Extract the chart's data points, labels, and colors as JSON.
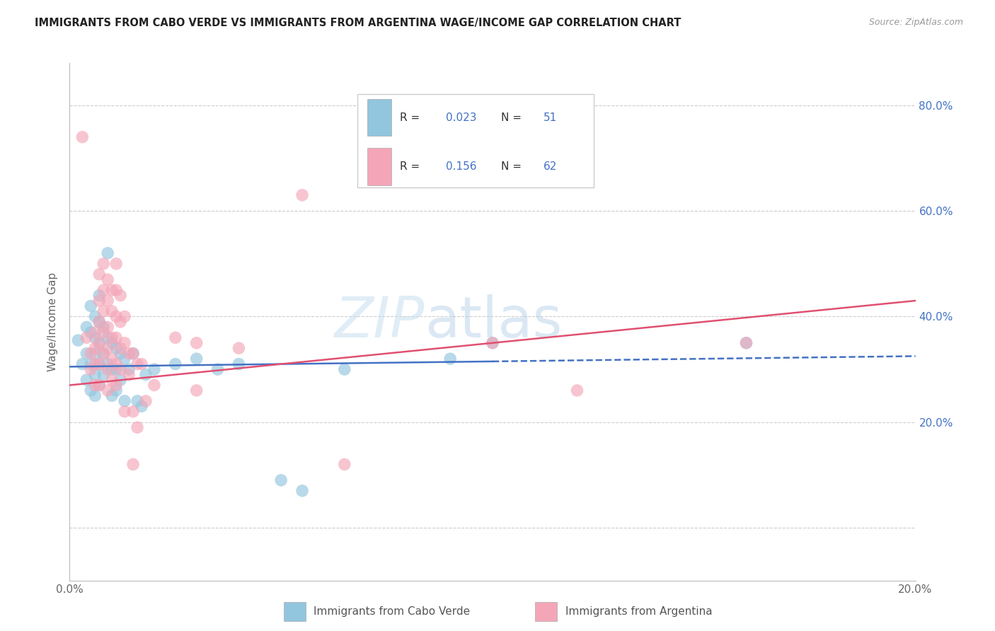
{
  "title": "IMMIGRANTS FROM CABO VERDE VS IMMIGRANTS FROM ARGENTINA WAGE/INCOME GAP CORRELATION CHART",
  "source": "Source: ZipAtlas.com",
  "ylabel": "Wage/Income Gap",
  "y_ticks": [
    0.0,
    0.2,
    0.4,
    0.6,
    0.8
  ],
  "y_tick_labels": [
    "",
    "20.0%",
    "40.0%",
    "60.0%",
    "80.0%"
  ],
  "x_min": 0.0,
  "x_max": 0.2,
  "y_min": -0.1,
  "y_max": 0.88,
  "cabo_verde_R": 0.023,
  "cabo_verde_N": 51,
  "argentina_R": 0.156,
  "argentina_N": 62,
  "color_blue": "#92c5de",
  "color_pink": "#f4a6b8",
  "color_blue_text": "#4472c4",
  "color_pink_text": "#e05070",
  "legend_label_blue": "Immigrants from Cabo Verde",
  "legend_label_pink": "Immigrants from Argentina",
  "watermark_zip": "ZIP",
  "watermark_atlas": "atlas",
  "cabo_verde_points": [
    [
      0.002,
      0.355
    ],
    [
      0.003,
      0.31
    ],
    [
      0.004,
      0.38
    ],
    [
      0.004,
      0.33
    ],
    [
      0.004,
      0.28
    ],
    [
      0.005,
      0.42
    ],
    [
      0.005,
      0.37
    ],
    [
      0.005,
      0.31
    ],
    [
      0.005,
      0.26
    ],
    [
      0.006,
      0.4
    ],
    [
      0.006,
      0.36
    ],
    [
      0.006,
      0.33
    ],
    [
      0.006,
      0.29
    ],
    [
      0.006,
      0.25
    ],
    [
      0.007,
      0.44
    ],
    [
      0.007,
      0.39
    ],
    [
      0.007,
      0.35
    ],
    [
      0.007,
      0.31
    ],
    [
      0.007,
      0.27
    ],
    [
      0.008,
      0.38
    ],
    [
      0.008,
      0.33
    ],
    [
      0.008,
      0.29
    ],
    [
      0.009,
      0.52
    ],
    [
      0.009,
      0.36
    ],
    [
      0.009,
      0.31
    ],
    [
      0.01,
      0.35
    ],
    [
      0.01,
      0.3
    ],
    [
      0.01,
      0.25
    ],
    [
      0.011,
      0.34
    ],
    [
      0.011,
      0.3
    ],
    [
      0.011,
      0.26
    ],
    [
      0.012,
      0.33
    ],
    [
      0.012,
      0.28
    ],
    [
      0.013,
      0.32
    ],
    [
      0.013,
      0.24
    ],
    [
      0.014,
      0.3
    ],
    [
      0.015,
      0.33
    ],
    [
      0.016,
      0.24
    ],
    [
      0.017,
      0.23
    ],
    [
      0.018,
      0.29
    ],
    [
      0.02,
      0.3
    ],
    [
      0.025,
      0.31
    ],
    [
      0.03,
      0.32
    ],
    [
      0.035,
      0.3
    ],
    [
      0.04,
      0.31
    ],
    [
      0.05,
      0.09
    ],
    [
      0.055,
      0.07
    ],
    [
      0.065,
      0.3
    ],
    [
      0.09,
      0.32
    ],
    [
      0.1,
      0.35
    ],
    [
      0.16,
      0.35
    ]
  ],
  "argentina_points": [
    [
      0.003,
      0.74
    ],
    [
      0.004,
      0.36
    ],
    [
      0.005,
      0.33
    ],
    [
      0.005,
      0.3
    ],
    [
      0.006,
      0.37
    ],
    [
      0.006,
      0.34
    ],
    [
      0.006,
      0.31
    ],
    [
      0.006,
      0.27
    ],
    [
      0.007,
      0.48
    ],
    [
      0.007,
      0.43
    ],
    [
      0.007,
      0.39
    ],
    [
      0.007,
      0.35
    ],
    [
      0.007,
      0.31
    ],
    [
      0.007,
      0.27
    ],
    [
      0.008,
      0.5
    ],
    [
      0.008,
      0.45
    ],
    [
      0.008,
      0.41
    ],
    [
      0.008,
      0.37
    ],
    [
      0.008,
      0.33
    ],
    [
      0.009,
      0.47
    ],
    [
      0.009,
      0.43
    ],
    [
      0.009,
      0.38
    ],
    [
      0.009,
      0.34
    ],
    [
      0.009,
      0.3
    ],
    [
      0.009,
      0.26
    ],
    [
      0.01,
      0.45
    ],
    [
      0.01,
      0.41
    ],
    [
      0.01,
      0.36
    ],
    [
      0.01,
      0.32
    ],
    [
      0.01,
      0.28
    ],
    [
      0.011,
      0.5
    ],
    [
      0.011,
      0.45
    ],
    [
      0.011,
      0.4
    ],
    [
      0.011,
      0.36
    ],
    [
      0.011,
      0.31
    ],
    [
      0.011,
      0.27
    ],
    [
      0.012,
      0.44
    ],
    [
      0.012,
      0.39
    ],
    [
      0.012,
      0.34
    ],
    [
      0.012,
      0.3
    ],
    [
      0.013,
      0.4
    ],
    [
      0.013,
      0.35
    ],
    [
      0.013,
      0.22
    ],
    [
      0.014,
      0.33
    ],
    [
      0.014,
      0.29
    ],
    [
      0.015,
      0.33
    ],
    [
      0.015,
      0.22
    ],
    [
      0.015,
      0.12
    ],
    [
      0.016,
      0.31
    ],
    [
      0.016,
      0.19
    ],
    [
      0.017,
      0.31
    ],
    [
      0.018,
      0.24
    ],
    [
      0.02,
      0.27
    ],
    [
      0.025,
      0.36
    ],
    [
      0.03,
      0.35
    ],
    [
      0.03,
      0.26
    ],
    [
      0.04,
      0.34
    ],
    [
      0.055,
      0.63
    ],
    [
      0.065,
      0.12
    ],
    [
      0.1,
      0.35
    ],
    [
      0.12,
      0.26
    ],
    [
      0.16,
      0.35
    ]
  ]
}
